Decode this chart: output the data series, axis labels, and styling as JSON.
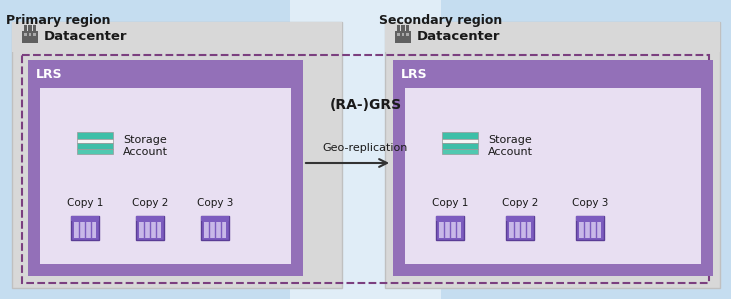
{
  "bg_color": "#daeaf5",
  "title_primary": "Primary region",
  "title_secondary": "Secondary region",
  "datacenter_bg": "#d8d8d8",
  "datacenter_label": "Datacenter",
  "lrs_outer_color": "#9370b8",
  "lrs_inner_color": "#e8dff2",
  "lrs_label": "LRS",
  "grs_label": "(RA-)GRS",
  "geo_label": "Geo-replication",
  "copy_labels": [
    "Copy 1",
    "Copy 2",
    "Copy 3"
  ],
  "storage_stripe_colors": [
    "#3dbfa8",
    "#f5f5f5",
    "#3dbfa8",
    "#50c8b0"
  ],
  "copy_bar_outer": "#7c5cbf",
  "copy_bar_inner": "#c8b8e8",
  "arrow_color": "#333333",
  "dashed_border_color": "#7b3f7f",
  "primary_blue": "#c5ddf0",
  "secondary_blue": "#c5ddf0",
  "center_bg": "#e0edf7",
  "white_panel": "#f5f0fa"
}
